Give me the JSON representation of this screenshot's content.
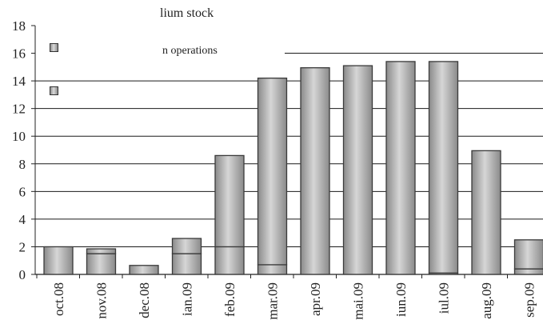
{
  "chart_data": {
    "type": "bar",
    "stacked": true,
    "categories": [
      "oct.08",
      "nov.08",
      "dec.08",
      "ian.09",
      "feb.09",
      "mar.09",
      "apr.09",
      "mai.09",
      "iun.09",
      "iul.09",
      "aug.09",
      "sep.09"
    ],
    "series": [
      {
        "name": "lium stock",
        "values": [
          2.0,
          1.5,
          0.65,
          1.5,
          2.0,
          0.7,
          0,
          0,
          0,
          0.1,
          0,
          0.4
        ]
      },
      {
        "name": "n operations",
        "values": [
          0,
          0.35,
          0,
          1.1,
          6.6,
          13.5,
          14.95,
          15.1,
          15.4,
          15.3,
          8.95,
          2.1
        ]
      }
    ],
    "ylim": [
      0,
      18
    ],
    "yticks": [
      "0",
      "2",
      "4",
      "6",
      "8",
      "10",
      "12",
      "14",
      "16",
      "18"
    ],
    "grid": true,
    "legend_position": "top-left",
    "colors": {
      "bar_edge": "#3a3a3a",
      "bar_mid": "#d6d6d6",
      "bar_side": "#8a8a8a",
      "grid": "#1a1a1a"
    }
  }
}
